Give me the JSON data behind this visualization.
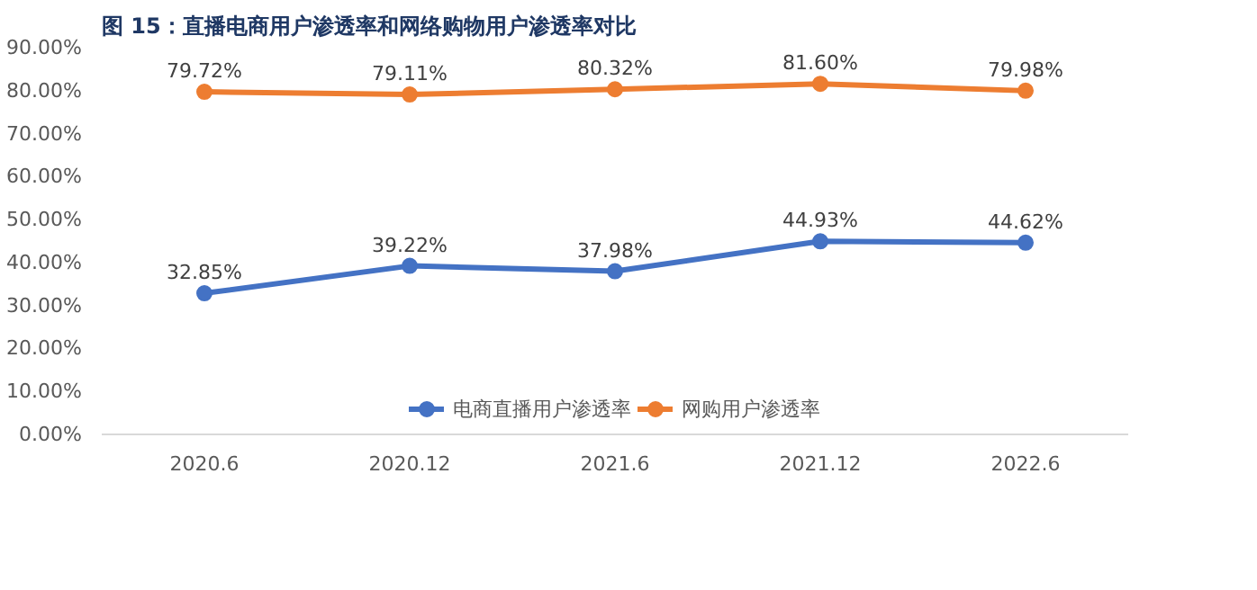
{
  "chart_data": {
    "type": "line",
    "title": "图 15：直播电商用户渗透率和网络购物用户渗透率对比",
    "categories": [
      "2020.6",
      "2020.12",
      "2021.6",
      "2021.12",
      "2022.6"
    ],
    "series": [
      {
        "name": "电商直播用户渗透率",
        "color": "#4472c4",
        "values": [
          32.85,
          39.22,
          37.98,
          44.93,
          44.62
        ],
        "value_labels": [
          "32.85%",
          "39.22%",
          "37.98%",
          "44.93%",
          "44.62%"
        ]
      },
      {
        "name": "网购用户渗透率",
        "color": "#ed7d31",
        "values": [
          79.72,
          79.11,
          80.32,
          81.6,
          79.98
        ],
        "value_labels": [
          "79.72%",
          "79.11%",
          "80.32%",
          "81.60%",
          "79.98%"
        ]
      }
    ],
    "ylim": [
      0,
      90
    ],
    "yticks": [
      {
        "value": 0,
        "label": "0.00%"
      },
      {
        "value": 10,
        "label": "10.00%"
      },
      {
        "value": 20,
        "label": "20.00%"
      },
      {
        "value": 30,
        "label": "30.00%"
      },
      {
        "value": 40,
        "label": "40.00%"
      },
      {
        "value": 50,
        "label": "50.00%"
      },
      {
        "value": 60,
        "label": "60.00%"
      },
      {
        "value": 70,
        "label": "70.00%"
      },
      {
        "value": 80,
        "label": "80.00%"
      },
      {
        "value": 90,
        "label": "90.00%"
      }
    ],
    "legend": "bottom",
    "marker": "circle",
    "line_style": "solid",
    "grid": false
  }
}
